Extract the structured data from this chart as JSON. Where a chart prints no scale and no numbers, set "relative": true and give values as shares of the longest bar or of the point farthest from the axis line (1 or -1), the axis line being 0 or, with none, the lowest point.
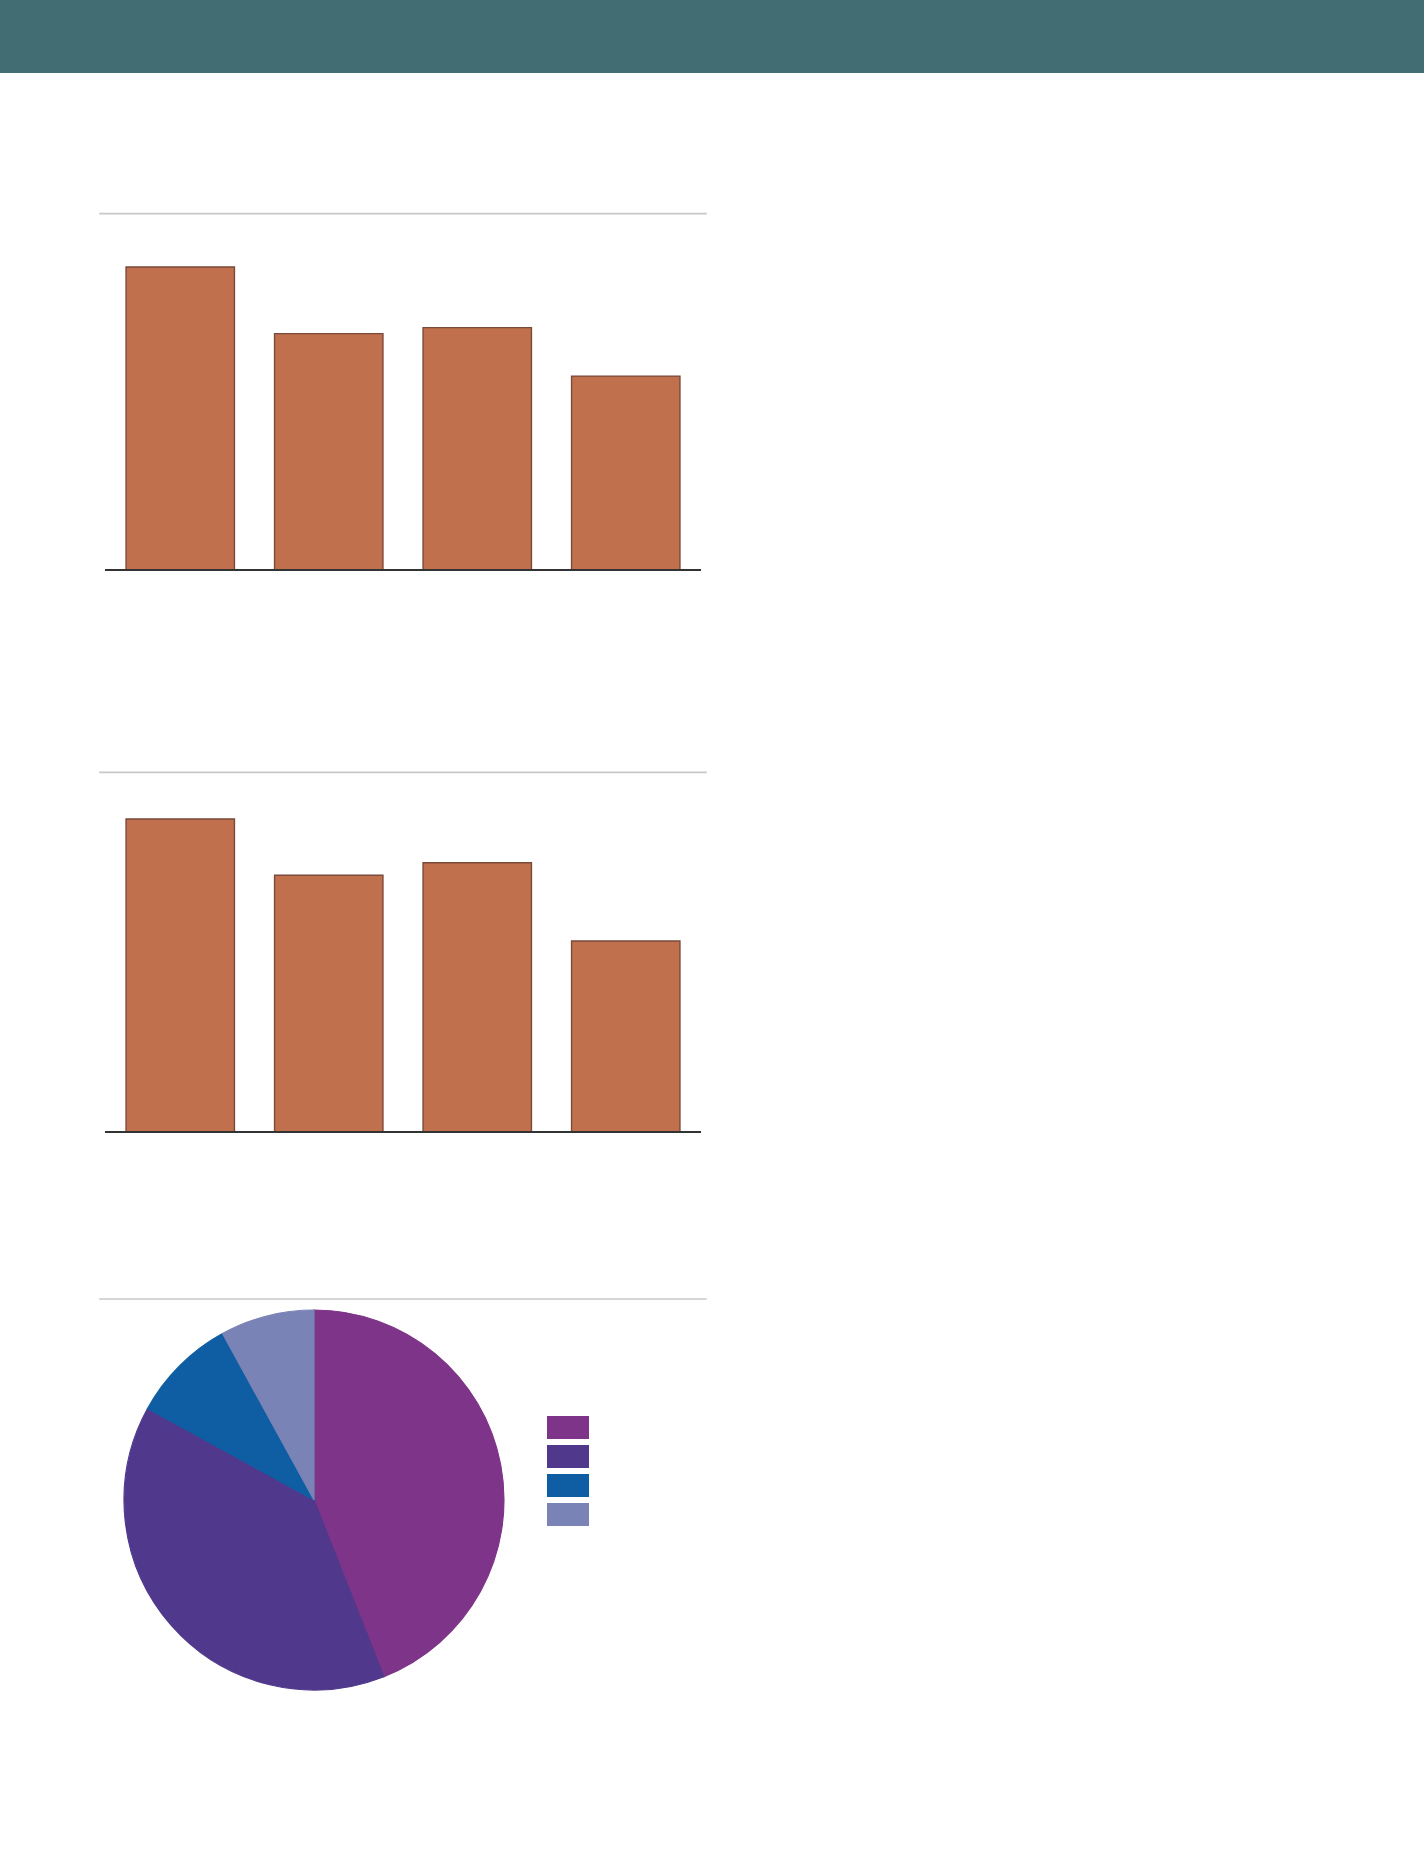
{
  "chart_data": [
    {
      "type": "bar",
      "categories": [
        null,
        null,
        null,
        null
      ],
      "values": [
        1,
        0.78,
        0.8,
        0.64
      ],
      "color": "#c0704c",
      "relative": true
    },
    {
      "type": "bar",
      "categories": [
        null,
        null,
        null,
        null
      ],
      "values": [
        1,
        0.82,
        0.86,
        0.61
      ],
      "color": "#c0704c",
      "relative": true
    },
    {
      "type": "pie",
      "categories": [
        null,
        null,
        null,
        null
      ],
      "values": [
        44,
        39,
        9,
        8
      ],
      "colors": [
        "#7e3488",
        "#50398c",
        "#0f5ea3",
        "#7a83b5"
      ]
    }
  ]
}
